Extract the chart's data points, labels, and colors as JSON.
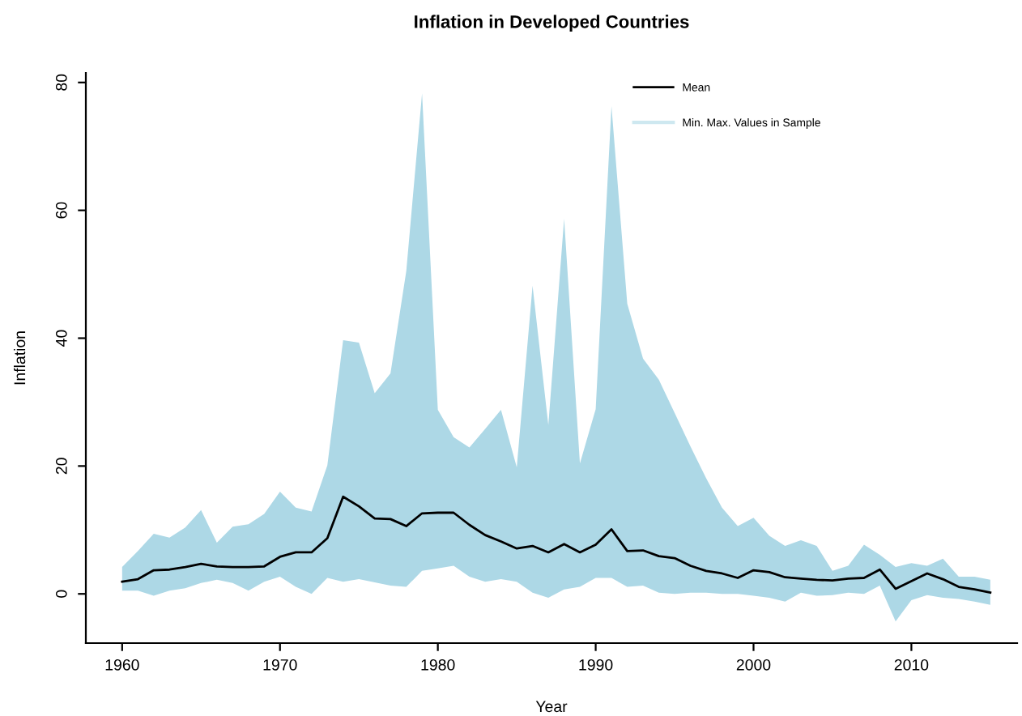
{
  "chart_data": {
    "type": "line",
    "title": "Inflation in Developed Countries",
    "xlabel": "Year",
    "ylabel": "Inflation",
    "annotations": [
      "Min. Max. Values in Sample"
    ],
    "x": [
      1960,
      1961,
      1962,
      1963,
      1964,
      1965,
      1966,
      1967,
      1968,
      1969,
      1970,
      1971,
      1972,
      1973,
      1974,
      1975,
      1976,
      1977,
      1978,
      1979,
      1980,
      1981,
      1982,
      1983,
      1984,
      1985,
      1986,
      1987,
      1988,
      1989,
      1990,
      1991,
      1992,
      1993,
      1994,
      1995,
      1996,
      1997,
      1998,
      1999,
      2000,
      2001,
      2002,
      2003,
      2004,
      2005,
      2006,
      2007,
      2008,
      2009,
      2010,
      2011,
      2012,
      2013,
      2014,
      2015
    ],
    "series": [
      {
        "name": "Mean",
        "color": "#000000",
        "values": [
          1.9,
          2.3,
          3.7,
          3.8,
          4.2,
          4.7,
          4.3,
          4.2,
          4.2,
          4.3,
          5.8,
          6.5,
          6.5,
          8.7,
          15.2,
          13.7,
          11.8,
          11.7,
          10.6,
          12.6,
          12.7,
          12.7,
          10.8,
          9.2,
          8.2,
          7.1,
          7.5,
          6.5,
          7.8,
          6.5,
          7.7,
          10.1,
          6.7,
          6.8,
          5.9,
          5.6,
          4.4,
          3.6,
          3.2,
          2.5,
          3.7,
          3.4,
          2.6,
          2.4,
          2.2,
          2.1,
          2.4,
          2.5,
          3.8,
          0.8,
          2.0,
          3.2,
          2.3,
          1.1,
          0.7,
          0.2
        ],
        "upper": [
          4.2,
          6.7,
          9.4,
          8.8,
          10.4,
          13.1,
          8.0,
          10.5,
          10.9,
          12.5,
          16.0,
          13.5,
          12.9,
          20.1,
          39.7,
          39.3,
          31.4,
          34.5,
          50.5,
          78.3,
          28.8,
          24.5,
          22.9,
          25.8,
          28.8,
          19.8,
          48.2,
          26.4,
          58.7,
          20.4,
          28.9,
          76.3,
          45.4,
          36.8,
          33.5,
          28.3,
          23.1,
          18.1,
          13.5,
          10.6,
          11.9,
          9.1,
          7.5,
          8.4,
          7.5,
          3.6,
          4.4,
          7.7,
          6.1,
          4.2,
          4.8,
          4.4,
          5.5,
          2.7,
          2.7,
          2.2
        ],
        "lower": [
          0.5,
          0.5,
          -0.3,
          0.5,
          0.9,
          1.7,
          2.2,
          1.7,
          0.5,
          1.9,
          2.7,
          1.1,
          0.0,
          2.5,
          1.9,
          2.3,
          1.8,
          1.3,
          1.1,
          3.6,
          4.0,
          4.4,
          2.7,
          1.9,
          2.3,
          1.9,
          0.2,
          -0.6,
          0.7,
          1.1,
          2.5,
          2.5,
          1.1,
          1.3,
          0.2,
          0.0,
          0.2,
          0.2,
          0.0,
          0.0,
          -0.3,
          -0.6,
          -1.2,
          0.2,
          -0.3,
          -0.2,
          0.2,
          0.0,
          1.3,
          -4.3,
          -1.0,
          -0.2,
          -0.6,
          -0.8,
          -1.2,
          -1.7
        ]
      }
    ],
    "xlim": [
      1957.7,
      2016.7
    ],
    "ylim": [
      -7.7,
      81.5
    ],
    "xticks": [
      1960,
      1970,
      1980,
      1990,
      2000,
      2010
    ],
    "yticks": [
      0,
      20,
      40,
      60,
      80
    ],
    "grid": false,
    "legend": "top right",
    "marker": "none",
    "line_style": "solid"
  }
}
